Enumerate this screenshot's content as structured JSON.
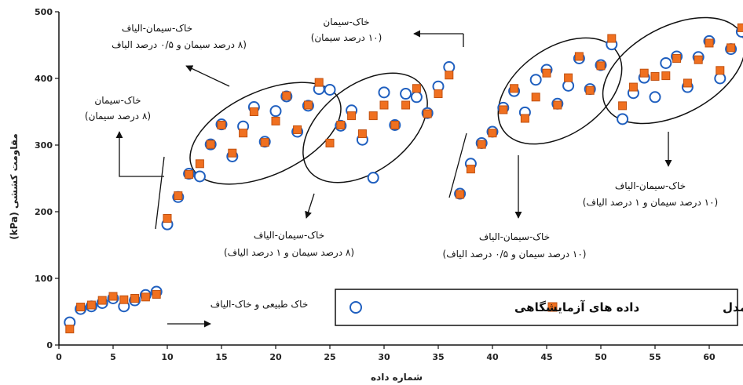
{
  "chart_data": {
    "type": "scatter",
    "xlabel": "شماره داده",
    "ylabel": "مقاومت کششی (kPa)",
    "xlim": [
      0,
      63
    ],
    "ylim": [
      0,
      500
    ],
    "xticks": [
      0,
      5,
      10,
      15,
      20,
      25,
      30,
      35,
      40,
      45,
      50,
      55,
      60
    ],
    "yticks": [
      0,
      100,
      200,
      300,
      400,
      500
    ],
    "grid": false,
    "legend_position": "bottom-right",
    "series": [
      {
        "name": "داده های آزمایشگاهی",
        "marker": "open-circle",
        "color": "#1f5fbf",
        "points": [
          [
            1,
            34
          ],
          [
            2,
            54
          ],
          [
            3,
            58
          ],
          [
            4,
            63
          ],
          [
            5,
            70
          ],
          [
            6,
            58
          ],
          [
            7,
            67
          ],
          [
            8,
            75
          ],
          [
            9,
            80
          ],
          [
            10,
            181
          ],
          [
            11,
            222
          ],
          [
            12,
            257
          ],
          [
            13,
            253
          ],
          [
            14,
            301
          ],
          [
            15,
            331
          ],
          [
            16,
            283
          ],
          [
            17,
            328
          ],
          [
            18,
            357
          ],
          [
            19,
            305
          ],
          [
            20,
            351
          ],
          [
            21,
            373
          ],
          [
            22,
            320
          ],
          [
            23,
            359
          ],
          [
            24,
            384
          ],
          [
            25,
            383
          ],
          [
            26,
            329
          ],
          [
            27,
            352
          ],
          [
            28,
            308
          ],
          [
            29,
            251
          ],
          [
            30,
            379
          ],
          [
            31,
            330
          ],
          [
            32,
            377
          ],
          [
            33,
            372
          ],
          [
            34,
            348
          ],
          [
            35,
            388
          ],
          [
            36,
            417
          ],
          [
            37,
            227
          ],
          [
            38,
            272
          ],
          [
            39,
            303
          ],
          [
            40,
            320
          ],
          [
            41,
            356
          ],
          [
            42,
            381
          ],
          [
            43,
            349
          ],
          [
            44,
            398
          ],
          [
            45,
            413
          ],
          [
            46,
            362
          ],
          [
            47,
            389
          ],
          [
            48,
            430
          ],
          [
            49,
            384
          ],
          [
            50,
            420
          ],
          [
            51,
            451
          ],
          [
            52,
            339
          ],
          [
            53,
            378
          ],
          [
            54,
            401
          ],
          [
            55,
            372
          ],
          [
            56,
            423
          ],
          [
            57,
            433
          ],
          [
            58,
            387
          ],
          [
            59,
            432
          ],
          [
            60,
            456
          ],
          [
            61,
            400
          ],
          [
            62,
            444
          ],
          [
            63,
            470
          ]
        ]
      },
      {
        "name": "داده های حاصل از مدل",
        "marker": "filled-square",
        "color": "#f07020",
        "edge": "#c05010",
        "points": [
          [
            1,
            24
          ],
          [
            2,
            57
          ],
          [
            3,
            60
          ],
          [
            4,
            67
          ],
          [
            5,
            73
          ],
          [
            6,
            68
          ],
          [
            7,
            70
          ],
          [
            8,
            72
          ],
          [
            9,
            76
          ],
          [
            10,
            190
          ],
          [
            11,
            224
          ],
          [
            12,
            256
          ],
          [
            13,
            272
          ],
          [
            14,
            301
          ],
          [
            15,
            330
          ],
          [
            16,
            288
          ],
          [
            17,
            318
          ],
          [
            18,
            350
          ],
          [
            19,
            304
          ],
          [
            20,
            336
          ],
          [
            21,
            374
          ],
          [
            22,
            323
          ],
          [
            23,
            360
          ],
          [
            24,
            394
          ],
          [
            25,
            303
          ],
          [
            26,
            330
          ],
          [
            27,
            344
          ],
          [
            28,
            317
          ],
          [
            29,
            344
          ],
          [
            30,
            360
          ],
          [
            31,
            330
          ],
          [
            32,
            360
          ],
          [
            33,
            385
          ],
          [
            34,
            347
          ],
          [
            35,
            377
          ],
          [
            36,
            405
          ],
          [
            37,
            226
          ],
          [
            38,
            264
          ],
          [
            39,
            301
          ],
          [
            40,
            318
          ],
          [
            41,
            353
          ],
          [
            42,
            385
          ],
          [
            43,
            340
          ],
          [
            44,
            372
          ],
          [
            45,
            408
          ],
          [
            46,
            360
          ],
          [
            47,
            401
          ],
          [
            48,
            433
          ],
          [
            49,
            382
          ],
          [
            50,
            419
          ],
          [
            51,
            460
          ],
          [
            52,
            359
          ],
          [
            53,
            387
          ],
          [
            54,
            408
          ],
          [
            55,
            403
          ],
          [
            56,
            404
          ],
          [
            57,
            430
          ],
          [
            58,
            393
          ],
          [
            59,
            428
          ],
          [
            60,
            453
          ],
          [
            61,
            412
          ],
          [
            62,
            446
          ],
          [
            63,
            476
          ]
        ]
      }
    ],
    "annotations": [
      {
        "line1": "خاک-سیمان-الیاف",
        "line2": "(۸ درصد سیمان و ۰/۵ درصد الیاف"
      },
      {
        "line1": "خاک-سیمان",
        "line2": "(۱۰ درصد سیمان)"
      },
      {
        "line1": "خاک-سیمان",
        "line2": "(۸ درصد سیمان)"
      },
      {
        "line1": "خاک-سیمان-الیاف",
        "line2": "(۸ درصد سیمان و ۱ درصد الیاف)"
      },
      {
        "line1": "خاک-سیمان-الیاف",
        "line2": "(۱۰ درصد سیمان و ۰/۵ درصد الیاف)"
      },
      {
        "line1": "خاک-سیمان-الیاف",
        "line2": "(۱۰ درصد سیمان و ۱ درصد الیاف)"
      },
      {
        "line1": "خاک طبیعی و خاک-الیاف",
        "line2": ""
      }
    ]
  }
}
